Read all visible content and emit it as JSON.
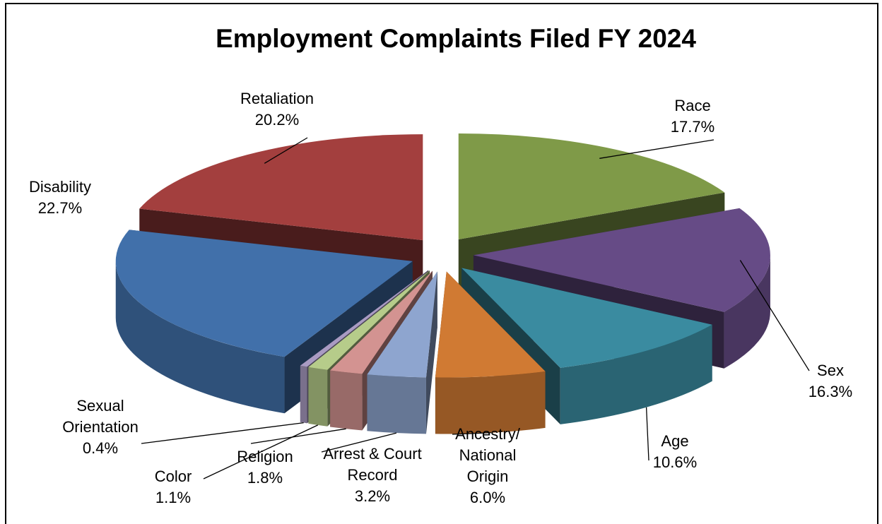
{
  "chart_data": {
    "type": "pie3d",
    "title": "Employment Complaints Filed FY 2024",
    "categories": [
      "Race",
      "Sex",
      "Age",
      "Ancestry/ National Origin",
      "Arrest & Court Record",
      "Religion",
      "Color",
      "Sexual Orientation",
      "Disability",
      "Retaliation"
    ],
    "values": [
      17.7,
      16.3,
      10.6,
      6.0,
      3.2,
      1.8,
      1.1,
      0.4,
      22.7,
      20.2
    ],
    "value_labels": [
      "17.7%",
      "16.3%",
      "10.6%",
      "6.0%",
      "3.2%",
      "1.8%",
      "1.1%",
      "0.4%",
      "22.7%",
      "20.2%"
    ],
    "colors": [
      "#7f9a48",
      "#664b86",
      "#3a8ba0",
      "#d07a33",
      "#8ea5cf",
      "#d39391",
      "#b6cc8a",
      "#a99bc3",
      "#4170aa",
      "#a33f3e"
    ]
  }
}
